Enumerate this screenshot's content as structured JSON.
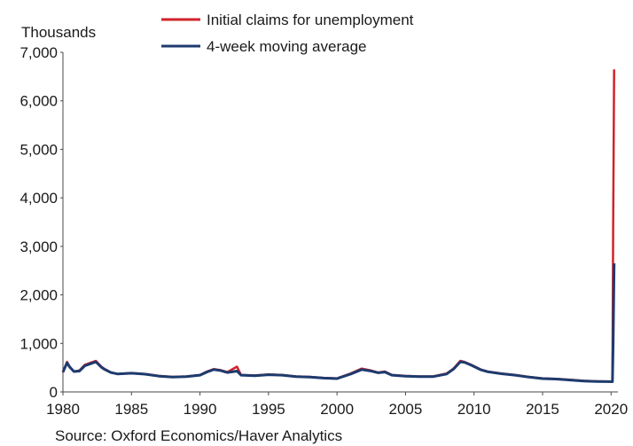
{
  "chart_data": {
    "type": "line",
    "ylabel": "Thousands",
    "ylim": [
      0,
      7000
    ],
    "xlim": [
      1980,
      2020.5
    ],
    "yticks": [
      "0",
      "1,000",
      "2,000",
      "3,000",
      "4,000",
      "5,000",
      "6,000",
      "7,000"
    ],
    "xticks": [
      "1980",
      "1985",
      "1990",
      "1995",
      "2000",
      "2005",
      "2010",
      "2015",
      "2020"
    ],
    "legend_position": "top",
    "grid": false,
    "source": "Source: Oxford Economics/Haver Analytics",
    "series": [
      {
        "name": "Initial claims for unemployment",
        "color": "#d1232a",
        "x": [
          1980.0,
          1980.3,
          1980.5,
          1980.8,
          1981.2,
          1981.6,
          1982.0,
          1982.4,
          1982.8,
          1983.0,
          1983.5,
          1984.0,
          1985.0,
          1986.0,
          1987.0,
          1988.0,
          1989.0,
          1990.0,
          1990.5,
          1991.0,
          1991.5,
          1992.0,
          1992.7,
          1993.0,
          1994.0,
          1995.0,
          1996.0,
          1997.0,
          1998.0,
          1999.0,
          2000.0,
          2001.0,
          2001.8,
          2002.5,
          2003.0,
          2003.5,
          2004.0,
          2005.0,
          2006.0,
          2007.0,
          2008.0,
          2008.5,
          2009.0,
          2009.3,
          2009.8,
          2010.5,
          2011.0,
          2012.0,
          2013.0,
          2014.0,
          2015.0,
          2016.0,
          2017.0,
          2018.0,
          2019.0,
          2019.8,
          2020.1,
          2020.15,
          2020.22
        ],
        "values": [
          400,
          620,
          520,
          420,
          440,
          560,
          600,
          640,
          520,
          480,
          400,
          370,
          390,
          370,
          330,
          310,
          320,
          350,
          420,
          470,
          450,
          410,
          520,
          350,
          340,
          360,
          350,
          320,
          310,
          290,
          280,
          380,
          480,
          440,
          400,
          420,
          350,
          330,
          320,
          320,
          380,
          480,
          640,
          620,
          560,
          460,
          420,
          380,
          350,
          310,
          280,
          270,
          250,
          230,
          220,
          215,
          210,
          3300,
          6650
        ]
      },
      {
        "name": "4-week moving average",
        "color": "#1d3b6e",
        "x": [
          1980.0,
          1980.3,
          1980.5,
          1980.8,
          1981.2,
          1981.6,
          1982.0,
          1982.4,
          1982.8,
          1983.0,
          1983.5,
          1984.0,
          1985.0,
          1986.0,
          1987.0,
          1988.0,
          1989.0,
          1990.0,
          1990.5,
          1991.0,
          1991.5,
          1992.0,
          1992.7,
          1993.0,
          1994.0,
          1995.0,
          1996.0,
          1997.0,
          1998.0,
          1999.0,
          2000.0,
          2001.0,
          2001.8,
          2002.5,
          2003.0,
          2003.5,
          2004.0,
          2005.0,
          2006.0,
          2007.0,
          2008.0,
          2008.5,
          2009.0,
          2009.3,
          2009.8,
          2010.5,
          2011.0,
          2012.0,
          2013.0,
          2014.0,
          2015.0,
          2016.0,
          2017.0,
          2018.0,
          2019.0,
          2019.8,
          2020.1,
          2020.15,
          2020.22
        ],
        "values": [
          410,
          600,
          510,
          420,
          430,
          540,
          580,
          620,
          510,
          470,
          400,
          370,
          385,
          365,
          325,
          305,
          315,
          345,
          410,
          460,
          440,
          400,
          430,
          345,
          335,
          355,
          345,
          315,
          305,
          285,
          275,
          370,
          460,
          430,
          395,
          410,
          345,
          325,
          315,
          315,
          370,
          470,
          620,
          610,
          550,
          455,
          415,
          375,
          345,
          305,
          275,
          265,
          245,
          225,
          215,
          212,
          210,
          1000,
          2650
        ]
      }
    ]
  }
}
